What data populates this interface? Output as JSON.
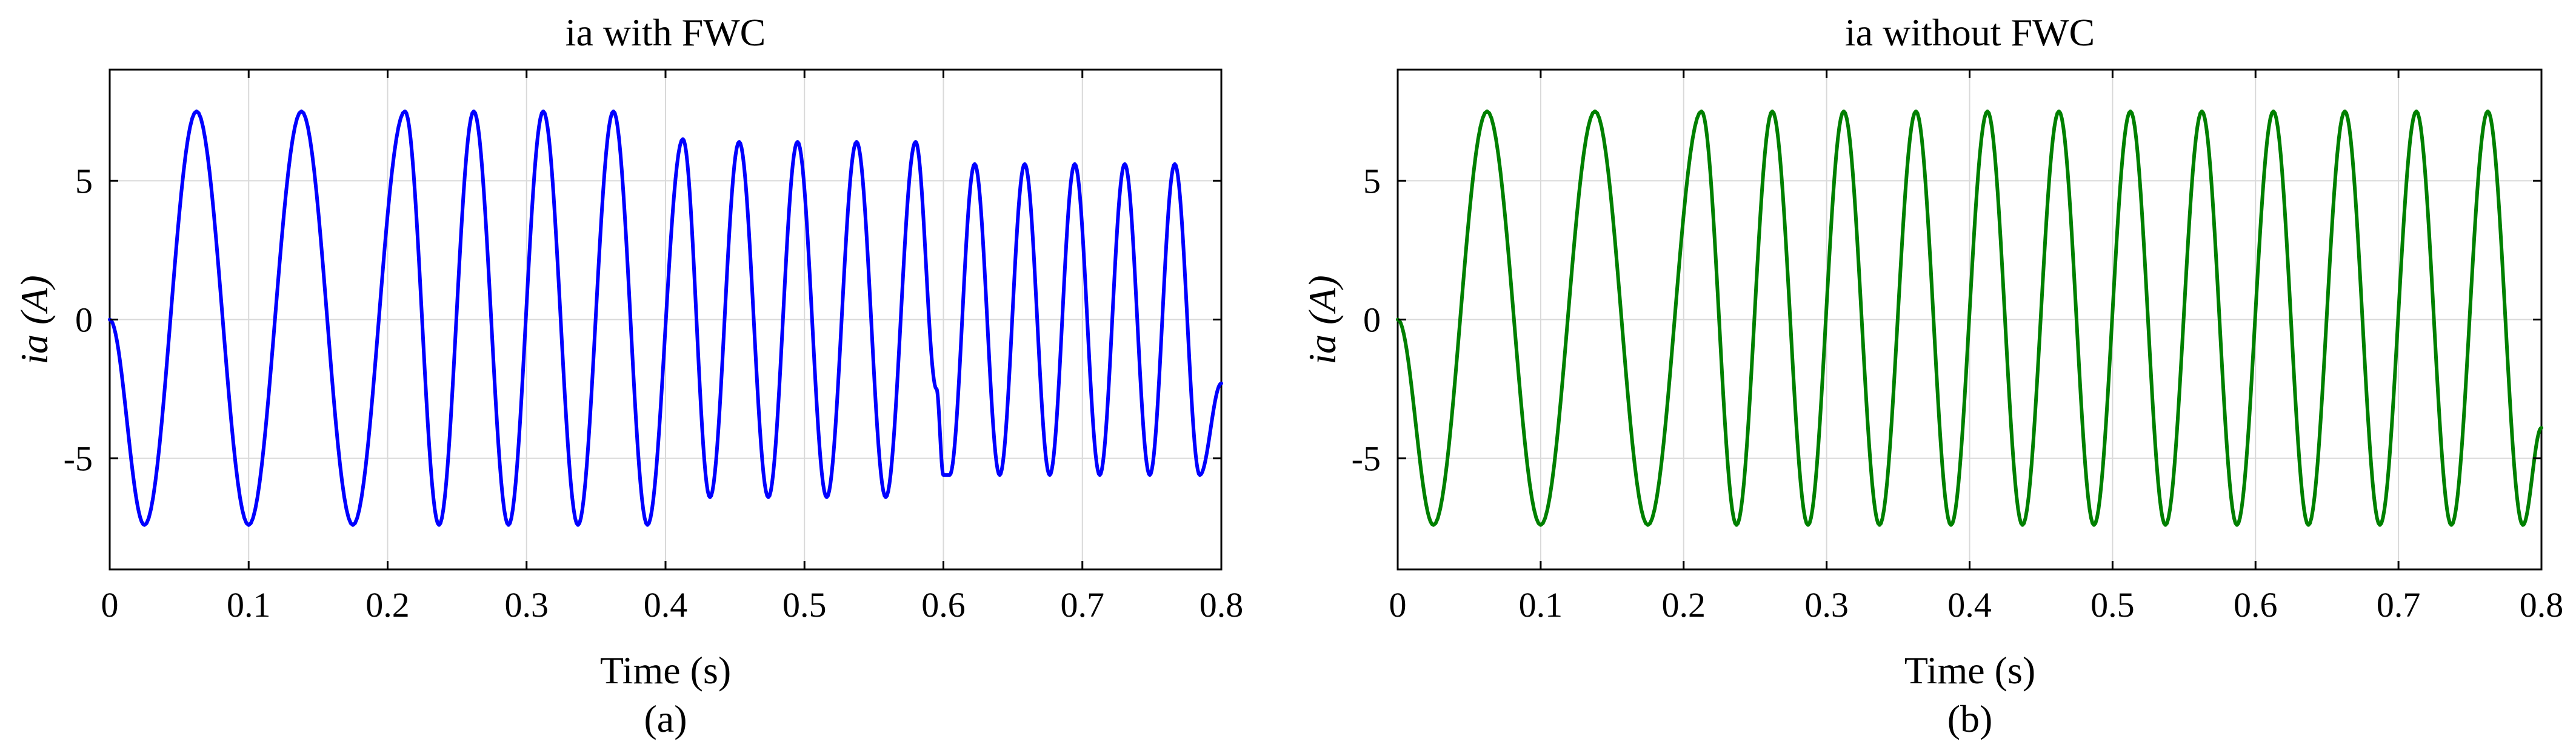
{
  "colors": {
    "series_a": "#0000ff",
    "series_b": "#008000",
    "grid": "#d9d9d9",
    "axes": "#000000"
  },
  "chart_data": [
    {
      "type": "line",
      "title": "ia with FWC",
      "xlabel": "Time (s)",
      "ylabel": "ia (A)",
      "caption": "(a)",
      "xlim": [
        0,
        0.8
      ],
      "ylim": [
        -9,
        9
      ],
      "x_ticks": [
        0,
        0.1,
        0.2,
        0.3,
        0.4,
        0.5,
        0.6,
        0.7,
        0.8
      ],
      "x_tick_labels": [
        "0",
        "0.1",
        "0.2",
        "0.3",
        "0.4",
        "0.5",
        "0.6",
        "0.7",
        "0.8"
      ],
      "y_ticks": [
        5,
        0,
        -5
      ],
      "y_tick_labels": [
        "5",
        "0",
        "-5"
      ],
      "grid": true,
      "line_color": "#0000ff",
      "series": [
        {
          "x": [
            0,
            0.025,
            0.0625,
            0.1,
            0.138,
            0.175,
            0.2125,
            0.237,
            0.262,
            0.287,
            0.312,
            0.337,
            0.3625,
            0.387,
            0.4125,
            0.432,
            0.453,
            0.474,
            0.495,
            0.516,
            0.5375,
            0.5585,
            0.58,
            0.595,
            0.6,
            0.6045,
            0.6225,
            0.6405,
            0.6585,
            0.6765,
            0.6945,
            0.7125,
            0.7305,
            0.7485,
            0.7665,
            0.7845,
            0.8
          ],
          "y": [
            0,
            -7.4,
            7.5,
            -7.4,
            7.5,
            -7.4,
            7.5,
            -7.4,
            7.5,
            -7.4,
            7.5,
            -7.4,
            7.5,
            -7.4,
            6.5,
            -6.4,
            6.4,
            -6.4,
            6.4,
            -6.4,
            6.4,
            -6.4,
            6.4,
            -2.5,
            -5.6,
            -5.6,
            5.6,
            -5.6,
            5.6,
            -5.6,
            5.6,
            -5.6,
            5.6,
            -5.6,
            5.6,
            -5.6,
            -2.3
          ]
        }
      ]
    },
    {
      "type": "line",
      "title": "ia without FWC",
      "xlabel": "Time (s)",
      "ylabel": "ia (A)",
      "caption": "(b)",
      "xlim": [
        0,
        0.8
      ],
      "ylim": [
        -9,
        9
      ],
      "x_ticks": [
        0,
        0.1,
        0.2,
        0.3,
        0.4,
        0.5,
        0.6,
        0.7,
        0.8
      ],
      "x_tick_labels": [
        "0",
        "0.1",
        "0.2",
        "0.3",
        "0.4",
        "0.5",
        "0.6",
        "0.7",
        "0.8"
      ],
      "y_ticks": [
        5,
        0,
        -5
      ],
      "y_tick_labels": [
        "5",
        "0",
        "-5"
      ],
      "grid": true,
      "line_color": "#008000",
      "series": [
        {
          "x": [
            0,
            0.025,
            0.0625,
            0.1,
            0.138,
            0.175,
            0.2125,
            0.237,
            0.262,
            0.287,
            0.312,
            0.337,
            0.3625,
            0.387,
            0.4125,
            0.437,
            0.4625,
            0.487,
            0.5125,
            0.537,
            0.5625,
            0.587,
            0.6125,
            0.637,
            0.6625,
            0.687,
            0.7125,
            0.737,
            0.7625,
            0.787,
            0.8
          ],
          "y": [
            0,
            -7.4,
            7.5,
            -7.4,
            7.5,
            -7.4,
            7.5,
            -7.4,
            7.5,
            -7.4,
            7.5,
            -7.4,
            7.5,
            -7.4,
            7.5,
            -7.4,
            7.5,
            -7.4,
            7.5,
            -7.4,
            7.5,
            -7.4,
            7.5,
            -7.4,
            7.5,
            -7.4,
            7.5,
            -7.4,
            7.5,
            -7.4,
            -3.9
          ]
        }
      ]
    }
  ]
}
